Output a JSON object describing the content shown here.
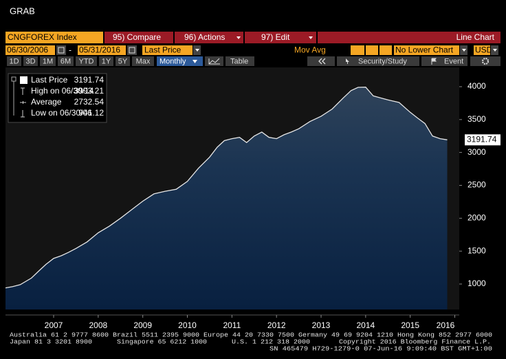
{
  "title": "GRAB",
  "toolbar": {
    "security": "CNGFOREX Index",
    "compare": "95) Compare",
    "actions": "96) Actions",
    "edit": "97) Edit",
    "chart_type": "Line Chart"
  },
  "controls": {
    "start_date": "06/30/2006",
    "separator": "-",
    "end_date": "05/31/2016",
    "field": "Last Price",
    "study": "Mov Avg",
    "lower_chart": "No Lower Chart",
    "currency": "USD"
  },
  "periods": [
    "1D",
    "3D",
    "1M",
    "6M",
    "YTD",
    "1Y",
    "5Y",
    "Max"
  ],
  "frequency": "Monthly",
  "table": "Table",
  "security_study": "Security/Study",
  "event": "Event",
  "chart_data": {
    "type": "area",
    "x": [
      2006.42,
      2006.58,
      2006.75,
      2007.0,
      2007.17,
      2007.33,
      2007.5,
      2007.67,
      2007.83,
      2008.0,
      2008.25,
      2008.5,
      2008.75,
      2009.0,
      2009.25,
      2009.5,
      2009.75,
      2010.0,
      2010.25,
      2010.5,
      2010.75,
      2011.0,
      2011.17,
      2011.33,
      2011.5,
      2011.67,
      2011.83,
      2012.0,
      2012.17,
      2012.33,
      2012.5,
      2012.67,
      2012.83,
      2013.0,
      2013.25,
      2013.5,
      2013.75,
      2014.0,
      2014.17,
      2014.33,
      2014.5,
      2014.67,
      2014.83,
      2015.0,
      2015.25,
      2015.5,
      2015.67,
      2015.83,
      2016.0,
      2016.17,
      2016.33
    ],
    "series": [
      {
        "name": "Last Price",
        "color": "#e6e6e6",
        "values": [
          941.12,
          960,
          990,
          1090,
          1200,
          1300,
          1390,
          1430,
          1480,
          1540,
          1640,
          1780,
          1880,
          2000,
          2130,
          2260,
          2370,
          2410,
          2440,
          2560,
          2760,
          2930,
          3080,
          3180,
          3210,
          3230,
          3150,
          3250,
          3310,
          3230,
          3210,
          3270,
          3310,
          3360,
          3470,
          3550,
          3660,
          3830,
          3940,
          3990,
          3993.21,
          3860,
          3830,
          3800,
          3760,
          3610,
          3520,
          3440,
          3250,
          3210,
          3191.74
        ]
      }
    ],
    "stats": [
      {
        "label": "High on 06/30/14",
        "value": 3993.21
      },
      {
        "label": "Average",
        "value": 2732.54
      },
      {
        "label": "Low on 06/30/06",
        "value": 941.12
      }
    ],
    "xlim": [
      2006.42,
      2016.6
    ],
    "xticks": [
      {
        "value": 2007.5,
        "label": "2007"
      },
      {
        "value": 2008.5,
        "label": "2008"
      },
      {
        "value": 2009.5,
        "label": "2009"
      },
      {
        "value": 2010.5,
        "label": "2010"
      },
      {
        "value": 2011.5,
        "label": "2011"
      },
      {
        "value": 2012.5,
        "label": "2012"
      },
      {
        "value": 2013.5,
        "label": "2013"
      },
      {
        "value": 2014.5,
        "label": "2014"
      },
      {
        "value": 2015.5,
        "label": "2015"
      },
      {
        "value": 2016.5,
        "label": "2016"
      }
    ],
    "ylim": [
      613,
      4293
    ],
    "yticks": [
      1000,
      1500,
      2000,
      2500,
      3000,
      3500,
      4000
    ]
  },
  "footer": [
    "Australia 61 2 9777 8600 Brazil 5511 2395 9000 Europe 44 20 7330 7500 Germany 49 69 9204 1210 Hong Kong 852 2977 6000",
    "Japan 81 3 3201 8900",
    "Singapore 65 6212 1000",
    "U.S. 1 212 318 2000",
    "Copyright 2016 Bloomberg Finance L.P.",
    "SN 465479 H729-1279-0 07-Jun-16  9:09:40 BST  GMT+1:00"
  ]
}
